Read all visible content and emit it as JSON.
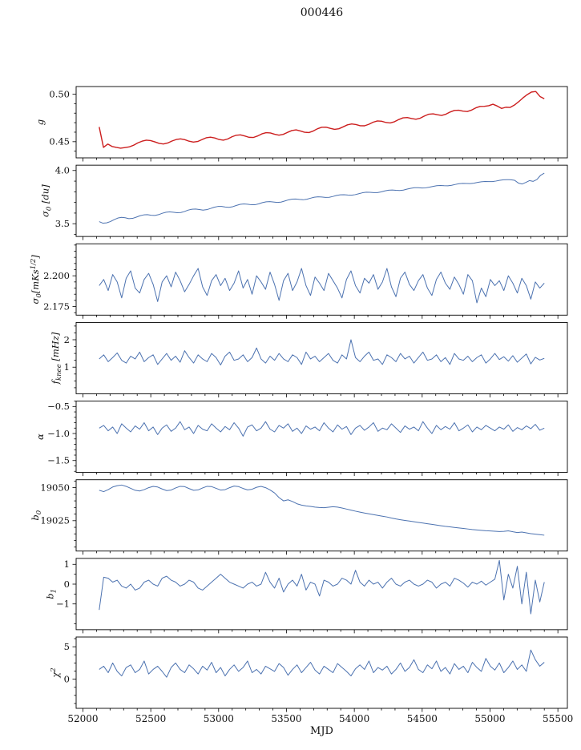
{
  "title": "000446",
  "chart_data": {
    "type": "line",
    "title": "000446",
    "xlabel": "MJD",
    "xlim": [
      51950,
      55570
    ],
    "x_ticks": [
      52000,
      52500,
      53000,
      53500,
      54000,
      54500,
      55000,
      55500
    ],
    "x_tick_labels": [
      "52000",
      "52500",
      "53000",
      "53500",
      "54000",
      "54500",
      "55000",
      "55500"
    ],
    "x_minor_step": 100,
    "line_color_default": "#4c72b0",
    "panels": [
      {
        "id": "g",
        "ylabel": "g",
        "color": "#cc1f1f",
        "lw": 1.4,
        "ylim": [
          0.433,
          0.508
        ],
        "yticks": [
          0.45,
          0.5
        ],
        "ytick_labels": [
          "0.45",
          "0.50"
        ],
        "y_minor_step": 0.01,
        "x_start": 52120,
        "x_end": 55400,
        "values": [
          0.4655,
          0.444,
          0.4475,
          0.445,
          0.444,
          0.4432,
          0.4438,
          0.4445,
          0.4462,
          0.4487,
          0.4505,
          0.4516,
          0.4512,
          0.4498,
          0.4482,
          0.4476,
          0.4486,
          0.4507,
          0.4523,
          0.453,
          0.4521,
          0.4505,
          0.4496,
          0.4502,
          0.4522,
          0.4541,
          0.4548,
          0.4539,
          0.4523,
          0.4516,
          0.4528,
          0.4551,
          0.4568,
          0.4572,
          0.456,
          0.4546,
          0.4544,
          0.456,
          0.4582,
          0.4595,
          0.4592,
          0.4578,
          0.4569,
          0.4577,
          0.4598,
          0.4617,
          0.4624,
          0.4613,
          0.4599,
          0.4596,
          0.4612,
          0.4636,
          0.4652,
          0.4653,
          0.464,
          0.463,
          0.4636,
          0.4656,
          0.4677,
          0.4687,
          0.468,
          0.4668,
          0.4667,
          0.4683,
          0.4705,
          0.4718,
          0.4715,
          0.4702,
          0.4697,
          0.471,
          0.4733,
          0.4751,
          0.4754,
          0.4743,
          0.4736,
          0.4747,
          0.477,
          0.4789,
          0.4793,
          0.4783,
          0.4776,
          0.4789,
          0.4812,
          0.4829,
          0.4831,
          0.4821,
          0.4817,
          0.4832,
          0.4856,
          0.4871,
          0.4872,
          0.4878,
          0.4894,
          0.4875,
          0.485,
          0.4862,
          0.486,
          0.4885,
          0.492,
          0.496,
          0.4995,
          0.5022,
          0.5028,
          0.4975,
          0.4952
        ]
      },
      {
        "id": "sigma0-du",
        "ylabel": "σ_{0} [du]",
        "ylim": [
          3.38,
          4.05
        ],
        "yticks": [
          3.5,
          4.0
        ],
        "ytick_labels": [
          "3.5",
          "4.0"
        ],
        "y_minor_step": 0.1,
        "x_start": 52120,
        "x_end": 55400,
        "values": [
          3.52,
          3.505,
          3.508,
          3.52,
          3.538,
          3.553,
          3.56,
          3.556,
          3.548,
          3.55,
          3.562,
          3.575,
          3.583,
          3.585,
          3.58,
          3.578,
          3.585,
          3.598,
          3.608,
          3.612,
          3.608,
          3.603,
          3.605,
          3.615,
          3.628,
          3.636,
          3.638,
          3.633,
          3.628,
          3.632,
          3.643,
          3.655,
          3.662,
          3.662,
          3.657,
          3.654,
          3.66,
          3.672,
          3.682,
          3.686,
          3.683,
          3.678,
          3.678,
          3.687,
          3.698,
          3.706,
          3.708,
          3.704,
          3.7,
          3.703,
          3.713,
          3.724,
          3.731,
          3.732,
          3.728,
          3.725,
          3.73,
          3.74,
          3.749,
          3.753,
          3.751,
          3.747,
          3.748,
          3.756,
          3.766,
          3.772,
          3.773,
          3.77,
          3.768,
          3.773,
          3.782,
          3.791,
          3.796,
          3.795,
          3.792,
          3.792,
          3.799,
          3.808,
          3.815,
          3.817,
          3.814,
          3.812,
          3.816,
          3.825,
          3.833,
          3.838,
          3.838,
          3.836,
          3.837,
          3.843,
          3.851,
          3.857,
          3.859,
          3.857,
          3.856,
          3.861,
          3.869,
          3.876,
          3.879,
          3.878,
          3.877,
          3.881,
          3.888,
          3.894,
          3.897,
          3.896,
          3.896,
          3.901,
          3.908,
          3.913,
          3.914,
          3.913,
          3.908,
          3.882,
          3.873,
          3.888,
          3.905,
          3.898,
          3.915,
          3.955,
          3.975
        ]
      },
      {
        "id": "sigma0-mks",
        "ylabel": "σ_{0}[mKs^{1/2}]",
        "ylim": [
          2.168,
          2.226
        ],
        "yticks": [
          2.175,
          2.2
        ],
        "ytick_labels": [
          "2.175",
          "2.200"
        ],
        "y_minor_step": 0.005,
        "x_start": 52120,
        "x_end": 55400,
        "values": [
          2.192,
          2.197,
          2.188,
          2.201,
          2.195,
          2.182,
          2.198,
          2.204,
          2.19,
          2.186,
          2.197,
          2.202,
          2.193,
          2.179,
          2.195,
          2.2,
          2.191,
          2.203,
          2.196,
          2.187,
          2.193,
          2.2,
          2.206,
          2.191,
          2.184,
          2.196,
          2.201,
          2.192,
          2.198,
          2.188,
          2.194,
          2.204,
          2.19,
          2.197,
          2.185,
          2.2,
          2.195,
          2.189,
          2.203,
          2.193,
          2.18,
          2.196,
          2.202,
          2.188,
          2.195,
          2.206,
          2.192,
          2.184,
          2.199,
          2.194,
          2.188,
          2.202,
          2.196,
          2.19,
          2.182,
          2.197,
          2.204,
          2.192,
          2.186,
          2.198,
          2.194,
          2.201,
          2.189,
          2.195,
          2.206,
          2.191,
          2.183,
          2.198,
          2.203,
          2.193,
          2.188,
          2.196,
          2.201,
          2.19,
          2.184,
          2.197,
          2.203,
          2.194,
          2.189,
          2.199,
          2.193,
          2.185,
          2.201,
          2.196,
          2.178,
          2.19,
          2.183,
          2.197,
          2.192,
          2.196,
          2.188,
          2.2,
          2.194,
          2.186,
          2.198,
          2.192,
          2.181,
          2.195,
          2.19,
          2.194
        ]
      },
      {
        "id": "fknee",
        "ylabel": "f_{knee} [mHz]",
        "ylim": [
          0.03,
          2.63
        ],
        "yticks": [
          1,
          2
        ],
        "ytick_labels": [
          "1",
          "2"
        ],
        "y_minor_step": 0.25,
        "x_start": 52120,
        "x_end": 55400,
        "values": [
          1.3,
          1.45,
          1.2,
          1.35,
          1.52,
          1.25,
          1.15,
          1.4,
          1.3,
          1.55,
          1.2,
          1.35,
          1.45,
          1.1,
          1.3,
          1.5,
          1.25,
          1.4,
          1.18,
          1.6,
          1.35,
          1.15,
          1.45,
          1.3,
          1.2,
          1.5,
          1.35,
          1.08,
          1.4,
          1.55,
          1.25,
          1.3,
          1.45,
          1.2,
          1.35,
          1.7,
          1.3,
          1.15,
          1.4,
          1.25,
          1.5,
          1.3,
          1.2,
          1.45,
          1.35,
          1.1,
          1.55,
          1.3,
          1.4,
          1.2,
          1.35,
          1.5,
          1.25,
          1.15,
          1.45,
          1.3,
          2.0,
          1.35,
          1.2,
          1.4,
          1.55,
          1.25,
          1.3,
          1.1,
          1.45,
          1.35,
          1.2,
          1.5,
          1.3,
          1.4,
          1.15,
          1.35,
          1.55,
          1.25,
          1.3,
          1.45,
          1.2,
          1.35,
          1.1,
          1.5,
          1.3,
          1.25,
          1.4,
          1.2,
          1.35,
          1.45,
          1.15,
          1.3,
          1.5,
          1.28,
          1.38,
          1.22,
          1.42,
          1.18,
          1.33,
          1.48,
          1.12,
          1.36,
          1.26,
          1.32
        ]
      },
      {
        "id": "alpha",
        "ylabel": "α",
        "ylim": [
          -1.72,
          -0.4
        ],
        "yticks": [
          -1.5,
          -1.0,
          -0.5
        ],
        "ytick_labels": [
          "−1.5",
          "−1.0",
          "−0.5"
        ],
        "y_minor_step": 0.1,
        "x_start": 52120,
        "x_end": 55400,
        "values": [
          -0.9,
          -0.85,
          -0.95,
          -0.88,
          -1.0,
          -0.82,
          -0.9,
          -0.97,
          -0.86,
          -0.92,
          -0.8,
          -0.95,
          -0.88,
          -1.02,
          -0.9,
          -0.84,
          -0.96,
          -0.9,
          -0.78,
          -0.93,
          -0.88,
          -1.0,
          -0.85,
          -0.92,
          -0.95,
          -0.82,
          -0.9,
          -0.97,
          -0.87,
          -0.93,
          -0.8,
          -0.9,
          -1.05,
          -0.88,
          -0.84,
          -0.95,
          -0.9,
          -0.78,
          -0.92,
          -0.97,
          -0.85,
          -0.9,
          -0.82,
          -0.96,
          -0.9,
          -1.0,
          -0.86,
          -0.92,
          -0.88,
          -0.95,
          -0.8,
          -0.9,
          -0.97,
          -0.84,
          -0.92,
          -0.87,
          -1.02,
          -0.9,
          -0.85,
          -0.94,
          -0.88,
          -0.8,
          -0.96,
          -0.9,
          -0.93,
          -0.82,
          -0.9,
          -0.98,
          -0.86,
          -0.92,
          -0.88,
          -0.95,
          -0.78,
          -0.9,
          -1.0,
          -0.85,
          -0.93,
          -0.87,
          -0.92,
          -0.8,
          -0.95,
          -0.9,
          -0.84,
          -0.97,
          -0.88,
          -0.93,
          -0.85,
          -0.9,
          -0.95,
          -0.88,
          -0.92,
          -0.84,
          -0.96,
          -0.89,
          -0.93,
          -0.86,
          -0.91,
          -0.83,
          -0.94,
          -0.9
        ]
      },
      {
        "id": "b0",
        "ylabel": "b_{0}",
        "ylim": [
          19002,
          19056
        ],
        "yticks": [
          19025,
          19050
        ],
        "ytick_labels": [
          "19025",
          "19050"
        ],
        "y_minor_step": 5,
        "x_start": 52120,
        "x_end": 55400,
        "values": [
          19048,
          19047,
          19048.5,
          19050.5,
          19051.5,
          19052,
          19051,
          19049.5,
          19048,
          19047.5,
          19048.5,
          19050,
          19051,
          19050.5,
          19049,
          19047.8,
          19048.2,
          19049.8,
          19051,
          19050.8,
          19049.3,
          19048,
          19048.3,
          19049.8,
          19051,
          19050.8,
          19049.5,
          19048.2,
          19048.5,
          19050,
          19051.2,
          19050.8,
          19049.4,
          19048.3,
          19048.8,
          19050.3,
          19051,
          19050,
          19048.3,
          19046,
          19042.5,
          19040,
          19040.8,
          19039.5,
          19037.8,
          19036.8,
          19036.2,
          19035.8,
          19035.3,
          19035,
          19034.8,
          19035.2,
          19035.6,
          19035.3,
          19034.6,
          19033.8,
          19033,
          19032.2,
          19031.5,
          19030.8,
          19030.2,
          19029.6,
          19029,
          19028.4,
          19027.8,
          19027,
          19026.3,
          19025.7,
          19025.2,
          19024.7,
          19024.2,
          19023.7,
          19023.2,
          19022.7,
          19022.2,
          19021.7,
          19021.2,
          19020.7,
          19020.3,
          19019.9,
          19019.5,
          19019.1,
          19018.7,
          19018.3,
          19018,
          19017.7,
          19017.4,
          19017.2,
          19017,
          19016.8,
          19016.9,
          19017.3,
          19016.6,
          19016,
          19016.4,
          19015.8,
          19015.2,
          19014.8,
          19014.4,
          19014
        ]
      },
      {
        "id": "b1",
        "ylabel": "b_{1}",
        "ylim": [
          -2.3,
          1.3
        ],
        "yticks": [
          -1,
          0,
          1
        ],
        "ytick_labels": [
          "−1",
          "0",
          "1"
        ],
        "y_minor_step": 0.5,
        "x_start": 52120,
        "x_end": 55400,
        "values": [
          -1.3,
          0.35,
          0.3,
          0.1,
          0.2,
          -0.1,
          -0.2,
          0.0,
          -0.3,
          -0.2,
          0.1,
          0.2,
          0.0,
          -0.1,
          0.3,
          0.4,
          0.2,
          0.1,
          -0.1,
          0.0,
          0.2,
          0.1,
          -0.2,
          -0.3,
          -0.1,
          0.1,
          0.3,
          0.5,
          0.3,
          0.1,
          0.0,
          -0.1,
          -0.2,
          0.0,
          0.1,
          -0.1,
          0.0,
          0.6,
          0.1,
          -0.2,
          0.3,
          -0.4,
          0.0,
          0.2,
          -0.1,
          0.5,
          -0.3,
          0.1,
          0.0,
          -0.6,
          0.2,
          0.1,
          -0.1,
          0.0,
          0.3,
          0.2,
          0.0,
          0.7,
          0.1,
          -0.1,
          0.2,
          0.0,
          0.1,
          -0.2,
          0.1,
          0.3,
          0.0,
          -0.1,
          0.1,
          0.2,
          0.0,
          -0.1,
          0.0,
          0.2,
          0.1,
          -0.2,
          0.0,
          0.1,
          -0.1,
          0.3,
          0.2,
          0.05,
          -0.15,
          0.1,
          0.0,
          0.15,
          -0.05,
          0.1,
          0.25,
          1.2,
          -0.8,
          0.5,
          -0.2,
          0.9,
          -1.0,
          0.6,
          -1.5,
          0.2,
          -0.9,
          0.1
        ]
      },
      {
        "id": "chi2",
        "ylabel": "χ^{2}",
        "ylim": [
          -4.5,
          6.5
        ],
        "yticks": [
          0,
          5
        ],
        "ytick_labels": [
          "0",
          "5"
        ],
        "y_minor_step": 1.25,
        "x_start": 52120,
        "x_end": 55400,
        "values": [
          1.5,
          2.0,
          1.0,
          2.5,
          1.2,
          0.5,
          1.8,
          2.2,
          1.0,
          1.5,
          2.8,
          0.8,
          1.5,
          2.0,
          1.2,
          0.3,
          1.8,
          2.5,
          1.5,
          1.0,
          2.2,
          1.6,
          0.8,
          2.0,
          1.4,
          2.6,
          1.0,
          1.8,
          0.5,
          1.5,
          2.2,
          1.2,
          1.8,
          2.8,
          1.0,
          1.5,
          0.8,
          2.0,
          1.6,
          1.2,
          2.4,
          1.8,
          0.6,
          1.5,
          2.2,
          1.0,
          1.8,
          2.6,
          1.4,
          0.8,
          2.0,
          1.5,
          1.0,
          2.4,
          1.8,
          1.2,
          0.5,
          1.6,
          2.2,
          1.5,
          2.8,
          1.0,
          1.8,
          1.4,
          2.0,
          0.8,
          1.5,
          2.5,
          1.2,
          1.8,
          3.0,
          1.5,
          1.0,
          2.2,
          1.6,
          2.8,
          1.2,
          1.8,
          0.8,
          2.4,
          1.5,
          2.0,
          1.0,
          2.6,
          1.8,
          1.2,
          3.2,
          2.0,
          1.4,
          2.5,
          1.0,
          1.8,
          2.8,
          1.5,
          2.2,
          1.2,
          4.5,
          3.0,
          2.0,
          2.6
        ]
      }
    ]
  }
}
